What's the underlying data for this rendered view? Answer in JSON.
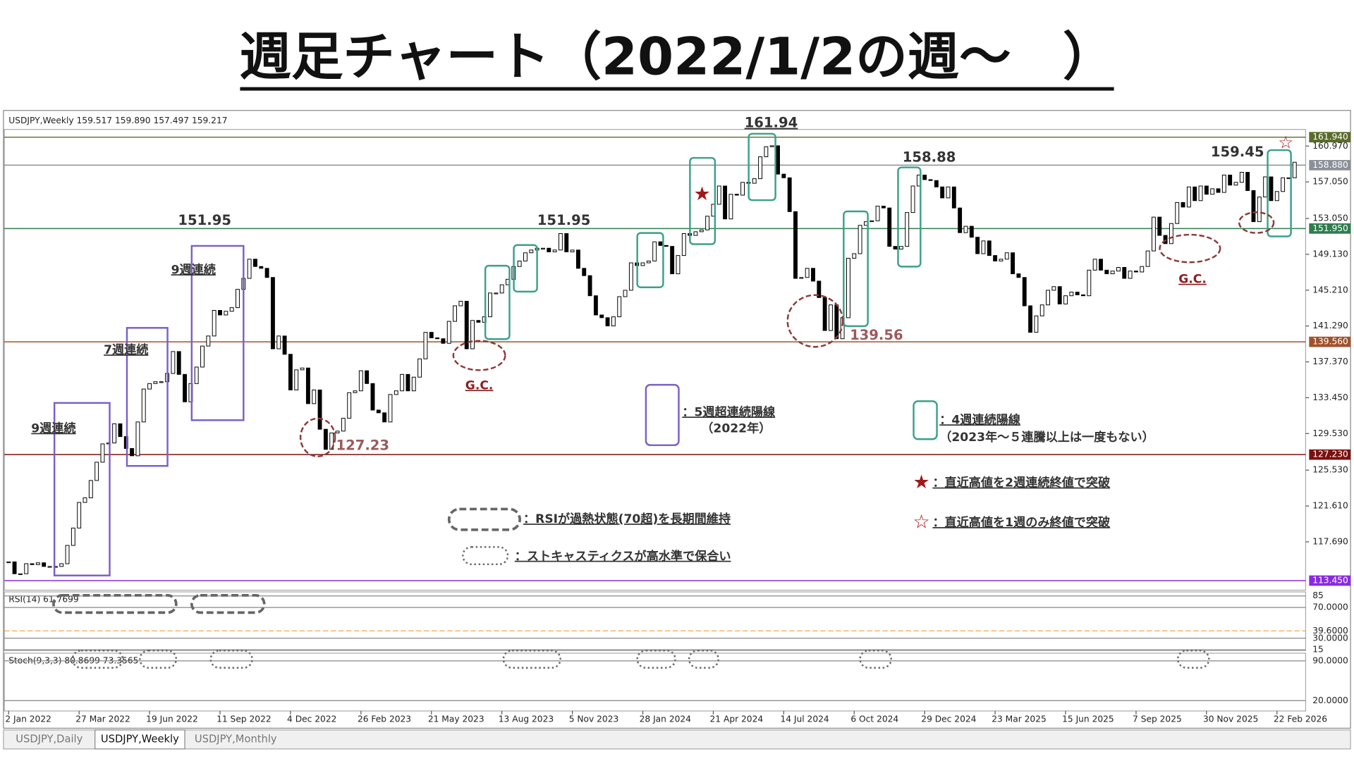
{
  "header": {
    "title": "週足チャート（2022/1/2の週～　）"
  },
  "chart_data": {
    "type": "candlestick",
    "symbol_info": "USDJPY,Weekly  159.517 159.890 157.497 159.217",
    "categories": [
      "2 Jan 2022",
      null,
      null,
      null,
      null,
      null,
      null,
      null,
      null,
      null,
      null,
      null,
      "27 Mar 2022",
      null,
      null,
      null,
      null,
      null,
      null,
      null,
      null,
      null,
      null,
      null,
      "19 Jun 2022",
      null,
      null,
      null,
      null,
      null,
      null,
      null,
      null,
      null,
      null,
      null,
      "11 Sep 2022",
      null,
      null,
      null,
      null,
      null,
      null,
      null,
      null,
      null,
      null,
      null,
      "4 Dec 2022",
      null,
      null,
      null,
      null,
      null,
      null,
      null,
      null,
      null,
      null,
      null,
      "26 Feb 2023",
      null,
      null,
      null,
      null,
      null,
      null,
      null,
      null,
      null,
      null,
      null,
      "21 May 2023",
      null,
      null,
      null,
      null,
      null,
      null,
      null,
      null,
      null,
      null,
      null,
      "13 Aug 2023",
      null,
      null,
      null,
      null,
      null,
      null,
      null,
      null,
      null,
      null,
      null,
      "5 Nov 2023",
      null,
      null,
      null,
      null,
      null,
      null,
      null,
      null,
      null,
      null,
      null,
      "28 Jan 2024",
      null,
      null,
      null,
      null,
      null,
      null,
      null,
      null,
      null,
      null,
      null,
      "21 Apr 2024",
      null,
      null,
      null,
      null,
      null,
      null,
      null,
      null,
      null,
      null,
      null,
      "14 Jul 2024",
      null,
      null,
      null,
      null,
      null,
      null,
      null,
      null,
      null,
      null,
      null,
      "6 Oct 2024",
      null,
      null,
      null,
      null,
      null,
      null,
      null,
      null,
      null,
      null,
      null,
      "29 Dec 2024",
      null,
      null,
      null,
      null,
      null,
      null,
      null,
      null,
      null,
      null,
      null,
      "23 Mar 2025",
      null,
      null,
      null,
      null,
      null,
      null,
      null,
      null,
      null,
      null,
      null,
      "15 Jun 2025",
      null,
      null,
      null,
      null,
      null,
      null,
      null,
      null,
      null,
      null,
      null,
      "7 Sep 2025",
      null,
      null,
      null,
      null,
      null,
      null,
      null,
      null,
      null,
      null,
      null,
      "30 Nov 2025",
      null,
      null,
      null,
      null,
      null,
      null,
      null,
      null,
      null,
      null,
      null,
      "22 Feb 2026",
      null,
      null,
      null
    ],
    "close": [
      115.5,
      114.2,
      114.2,
      115.3,
      115.2,
      115.4,
      115.0,
      115.0,
      115.0,
      115.3,
      117.3,
      119.2,
      122.0,
      122.5,
      124.4,
      126.4,
      128.4,
      128.5,
      130.6,
      129.2,
      127.9,
      127.1,
      130.8,
      134.4,
      135.0,
      135.2,
      135.2,
      136.1,
      138.5,
      136.0,
      133.0,
      135.0,
      136.8,
      139.1,
      140.2,
      143.0,
      142.5,
      142.9,
      143.3,
      145.3,
      146.5,
      148.6,
      147.8,
      147.6,
      146.6,
      138.8,
      140.2,
      138.2,
      134.3,
      136.5,
      136.7,
      132.8,
      134.3,
      130.0,
      127.8,
      129.6,
      129.8,
      131.2,
      134.0,
      134.2,
      136.4,
      135.0,
      132.1,
      131.8,
      130.8,
      133.8,
      134.2,
      136.0,
      134.2,
      135.7,
      137.7,
      140.6,
      140.0,
      139.9,
      139.4,
      141.8,
      143.5,
      144.0,
      138.8,
      141.9,
      141.7,
      142.3,
      144.9,
      144.9,
      145.8,
      146.4,
      147.8,
      148.4,
      149.3,
      149.6,
      149.8,
      149.8,
      149.4,
      149.6,
      151.4,
      149.4,
      149.6,
      147.6,
      146.8,
      144.6,
      142.5,
      142.2,
      141.3,
      142.3,
      144.5,
      145.2,
      148.2,
      147.9,
      148.2,
      148.4,
      150.5,
      150.1,
      150.0,
      147.0,
      149.0,
      151.4,
      151.2,
      151.6,
      151.8,
      153.3,
      154.6,
      156.6,
      153.0,
      155.7,
      155.6,
      157.0,
      156.9,
      157.4,
      159.8,
      160.9,
      161.0,
      157.9,
      157.5,
      153.8,
      146.5,
      146.6,
      147.6,
      146.2,
      144.4,
      140.8,
      143.6,
      139.9,
      142.2,
      148.7,
      149.2,
      152.3,
      152.7,
      152.8,
      154.4,
      154.2,
      150.0,
      149.7,
      150.0,
      153.7,
      156.6,
      157.8,
      157.3,
      157.2,
      156.5,
      155.3,
      156.5,
      154.2,
      151.5,
      152.2,
      151.0,
      149.2,
      150.6,
      149.0,
      148.4,
      148.6,
      149.3,
      147.0,
      146.6,
      143.5,
      140.6,
      142.4,
      143.6,
      145.2,
      145.6,
      143.7,
      144.6,
      145.0,
      144.7,
      144.6,
      147.4,
      148.6,
      147.4,
      147.0,
      147.3,
      147.7,
      146.5,
      147.3,
      147.2,
      147.8,
      149.5,
      153.2,
      151.2,
      150.3,
      152.5,
      154.8,
      154.3,
      156.5,
      155.0,
      156.6,
      155.7,
      156.3,
      155.9,
      157.8,
      156.7,
      157.0,
      158.1,
      156.1,
      152.7,
      155.4,
      157.6,
      155.0,
      156.0,
      157.5,
      157.5,
      159.2
    ],
    "ylim": [
      112.5,
      162.6
    ],
    "yticks": [
      {
        "value": 160.97,
        "label": "160.970"
      },
      {
        "value": 157.05,
        "label": "157.050"
      },
      {
        "value": 153.05,
        "label": "153.050"
      },
      {
        "value": 149.13,
        "label": "149.130"
      },
      {
        "value": 145.21,
        "label": "145.210"
      },
      {
        "value": 141.29,
        "label": "141.290"
      },
      {
        "value": 137.37,
        "label": "137.370"
      },
      {
        "value": 133.45,
        "label": "133.450"
      },
      {
        "value": 129.53,
        "label": "129.530"
      },
      {
        "value": 125.53,
        "label": "125.530"
      },
      {
        "value": 121.61,
        "label": "121.610"
      },
      {
        "value": 117.69,
        "label": "117.690"
      }
    ],
    "levels": [
      {
        "value": 161.94,
        "label": "161.940",
        "color": "#5a6b2a"
      },
      {
        "value": 158.88,
        "label": "158.880",
        "color": "#8a9099"
      },
      {
        "value": 151.95,
        "label": "151.950",
        "color": "#2e7d4f"
      },
      {
        "value": 139.56,
        "label": "139.560",
        "color": "#a0522d"
      },
      {
        "value": 127.23,
        "label": "127.230",
        "color": "#7b1010"
      },
      {
        "value": 113.45,
        "label": "113.450",
        "color": "#8a2be2"
      }
    ],
    "annotations": [
      "151.95",
      "151.95",
      "161.94",
      "158.88",
      "159.45",
      "139.56",
      "127.23",
      "9週連続",
      "7週連続",
      "9週連続",
      "G.C.",
      "G.C."
    ],
    "legend": [
      "：5週超連続陽線",
      "（2022年）",
      "：4週連続陽線",
      "（2023年～５連騰以上は一度もない）",
      "：直近高値を2週連続終値で突破",
      "：直近高値を1週のみ終値で突破",
      "：RSIが過熱状態(70超)を長期間維持",
      "：ストキャスティクスが高水準で保合い"
    ],
    "rsi": {
      "title": "RSI(14) 61.7699",
      "ylim": [
        14,
        88
      ],
      "yticks": [
        85,
        {
          "value": 70,
          "label": "70.0000"
        },
        {
          "value": 39.6,
          "label": "39.6000"
        },
        {
          "value": 30,
          "label": "30.0000"
        },
        15
      ]
    },
    "stoch": {
      "title": "Stoch(9,3,3) 80.8699 73.3565",
      "ylim": [
        5,
        102
      ],
      "yticks": [
        {
          "value": 90,
          "label": "90.0000"
        },
        {
          "value": 20,
          "label": "20.0000"
        }
      ]
    }
  },
  "tabs": [
    "USDJPY,Daily",
    "USDJPY,Weekly",
    "USDJPY,Monthly"
  ]
}
